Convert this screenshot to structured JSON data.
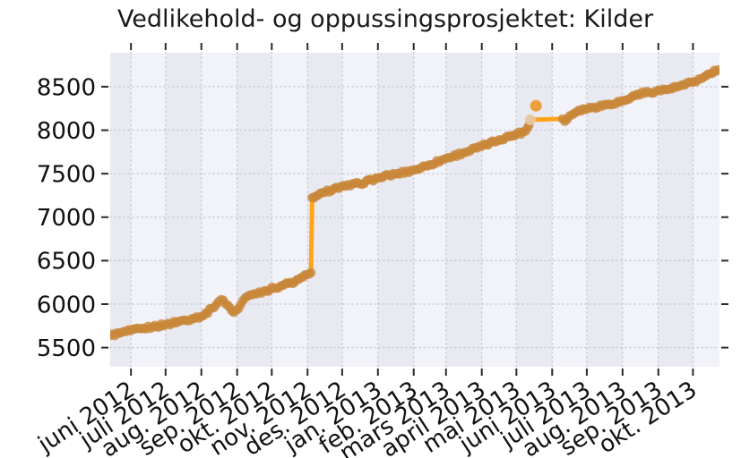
{
  "title": "Vedlikehold- og oppussingsprosjektet: Kilder",
  "colors": {
    "line": "#ffa41b",
    "marker": "#c8873a",
    "marker_light": "#e8c9a4",
    "outlier": "#ee9c33",
    "band_light": "#f2f2f9",
    "band_dark": "#e9e9f2",
    "grid": "#c7c7d6",
    "tick": "#2a2a2a",
    "text": "#111111"
  },
  "chart_data": {
    "type": "line",
    "title": "Vedlikehold- og oppussingsprosjektet: Kilder",
    "xlabel": "",
    "ylabel": "",
    "legend": "none",
    "grid": "dotted",
    "background": "alternating monthly vertical bands",
    "x_axis": {
      "start": "2012-05-14",
      "end": "2013-10-24",
      "ticks": [
        {
          "date": "2012-06-01",
          "label": "juni 2012"
        },
        {
          "date": "2012-07-01",
          "label": "juli 2012"
        },
        {
          "date": "2012-08-01",
          "label": "aug. 2012"
        },
        {
          "date": "2012-09-01",
          "label": "sep. 2012"
        },
        {
          "date": "2012-10-01",
          "label": "okt. 2012"
        },
        {
          "date": "2012-11-01",
          "label": "nov. 2012"
        },
        {
          "date": "2012-12-01",
          "label": "des. 2012"
        },
        {
          "date": "2013-01-01",
          "label": "jan. 2013"
        },
        {
          "date": "2013-02-01",
          "label": "feb. 2013"
        },
        {
          "date": "2013-03-01",
          "label": "mars 2013"
        },
        {
          "date": "2013-04-01",
          "label": "april 2013"
        },
        {
          "date": "2013-05-01",
          "label": "mai 2013"
        },
        {
          "date": "2013-06-01",
          "label": "juni 2013"
        },
        {
          "date": "2013-07-01",
          "label": "juli 2013"
        },
        {
          "date": "2013-08-01",
          "label": "aug. 2013"
        },
        {
          "date": "2013-09-01",
          "label": "sep. 2013"
        },
        {
          "date": "2013-10-01",
          "label": "okt. 2013"
        }
      ],
      "label_rotation_deg": 33
    },
    "y_axis": {
      "min": 5280,
      "max": 8890,
      "ticks": [
        5500,
        6000,
        6500,
        7000,
        7500,
        8000,
        8500
      ]
    },
    "series": [
      {
        "name": "Kilder",
        "points": [
          [
            "2012-05-14",
            5640
          ],
          [
            "2012-05-22",
            5665
          ],
          [
            "2012-06-01",
            5695
          ],
          [
            "2012-06-10",
            5715
          ],
          [
            "2012-06-20",
            5740
          ],
          [
            "2012-07-01",
            5765
          ],
          [
            "2012-07-12",
            5800
          ],
          [
            "2012-07-24",
            5835
          ],
          [
            "2012-08-03",
            5870
          ],
          [
            "2012-08-10",
            5950
          ],
          [
            "2012-08-16",
            6030
          ],
          [
            "2012-08-20",
            6045
          ],
          [
            "2012-08-24",
            5985
          ],
          [
            "2012-08-29",
            5905
          ],
          [
            "2012-09-02",
            5945
          ],
          [
            "2012-09-06",
            6040
          ],
          [
            "2012-09-10",
            6090
          ],
          [
            "2012-09-16",
            6120
          ],
          [
            "2012-09-24",
            6150
          ],
          [
            "2012-10-03",
            6185
          ],
          [
            "2012-10-12",
            6225
          ],
          [
            "2012-10-21",
            6255
          ],
          [
            "2012-10-28",
            6310
          ],
          [
            "2012-11-02",
            6345
          ],
          [
            "2012-11-04",
            6360
          ],
          [
            "2012-11-05",
            7225
          ],
          [
            "2012-11-10",
            7250
          ],
          [
            "2012-11-16",
            7285
          ],
          [
            "2012-11-24",
            7330
          ],
          [
            "2012-12-04",
            7355
          ],
          [
            "2012-12-16",
            7385
          ],
          [
            "2013-01-01",
            7450
          ],
          [
            "2013-01-16",
            7495
          ],
          [
            "2013-02-01",
            7540
          ],
          [
            "2013-02-15",
            7605
          ],
          [
            "2013-03-01",
            7675
          ],
          [
            "2013-03-16",
            7740
          ],
          [
            "2013-04-01",
            7815
          ],
          [
            "2013-04-16",
            7890
          ],
          [
            "2013-05-01",
            7955
          ],
          [
            "2013-05-09",
            7990
          ],
          [
            "2013-05-12",
            8060
          ],
          [
            "2013-05-13",
            8120
          ],
          [
            "2013-06-10",
            8130
          ],
          [
            "2013-06-12",
            8100
          ],
          [
            "2013-06-16",
            8165
          ],
          [
            "2013-06-24",
            8230
          ],
          [
            "2013-07-07",
            8265
          ],
          [
            "2013-07-20",
            8300
          ],
          [
            "2013-08-03",
            8340
          ],
          [
            "2013-08-14",
            8415
          ],
          [
            "2013-08-30",
            8450
          ],
          [
            "2013-09-11",
            8475
          ],
          [
            "2013-09-24",
            8520
          ],
          [
            "2013-10-08",
            8590
          ],
          [
            "2013-10-16",
            8650
          ],
          [
            "2013-10-23",
            8695
          ]
        ]
      }
    ],
    "marker_gaps": [
      [
        "2012-11-04",
        "2012-11-05"
      ],
      [
        "2013-05-13",
        "2013-06-10"
      ]
    ],
    "extra_points": [
      {
        "date": "2013-05-13",
        "value": 8120,
        "style": "light"
      },
      {
        "date": "2013-05-18",
        "value": 8280,
        "style": "outlier"
      }
    ]
  }
}
